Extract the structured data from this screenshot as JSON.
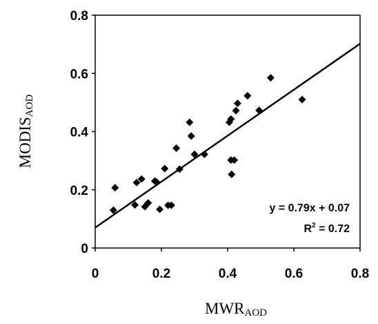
{
  "chart_data": {
    "type": "scatter",
    "title": "",
    "xlabel": {
      "main": "MWR",
      "sub": "AOD"
    },
    "ylabel": {
      "main": "MODIS",
      "sub": "AOD"
    },
    "xlim": [
      0,
      0.8
    ],
    "ylim": [
      0,
      0.8
    ],
    "xticks": [
      "0",
      "0.2",
      "0.4",
      "0.6",
      "0.8"
    ],
    "yticks": [
      "0",
      "0.2",
      "0.4",
      "0.6",
      "0.8"
    ],
    "grid": false,
    "points": [
      {
        "x": 0.055,
        "y": 0.13
      },
      {
        "x": 0.06,
        "y": 0.207
      },
      {
        "x": 0.12,
        "y": 0.148
      },
      {
        "x": 0.125,
        "y": 0.225
      },
      {
        "x": 0.14,
        "y": 0.237
      },
      {
        "x": 0.15,
        "y": 0.142
      },
      {
        "x": 0.16,
        "y": 0.155
      },
      {
        "x": 0.18,
        "y": 0.23
      },
      {
        "x": 0.185,
        "y": 0.227
      },
      {
        "x": 0.195,
        "y": 0.133
      },
      {
        "x": 0.21,
        "y": 0.273
      },
      {
        "x": 0.22,
        "y": 0.147
      },
      {
        "x": 0.23,
        "y": 0.147
      },
      {
        "x": 0.245,
        "y": 0.343
      },
      {
        "x": 0.255,
        "y": 0.271
      },
      {
        "x": 0.285,
        "y": 0.432
      },
      {
        "x": 0.29,
        "y": 0.385
      },
      {
        "x": 0.3,
        "y": 0.322
      },
      {
        "x": 0.33,
        "y": 0.322
      },
      {
        "x": 0.405,
        "y": 0.432
      },
      {
        "x": 0.41,
        "y": 0.443
      },
      {
        "x": 0.41,
        "y": 0.302
      },
      {
        "x": 0.412,
        "y": 0.253
      },
      {
        "x": 0.42,
        "y": 0.302
      },
      {
        "x": 0.425,
        "y": 0.472
      },
      {
        "x": 0.43,
        "y": 0.497
      },
      {
        "x": 0.46,
        "y": 0.523
      },
      {
        "x": 0.495,
        "y": 0.473
      },
      {
        "x": 0.53,
        "y": 0.585
      },
      {
        "x": 0.625,
        "y": 0.51
      }
    ],
    "trendline": {
      "slope": 0.79,
      "intercept": 0.07,
      "x_range": [
        0,
        0.8
      ]
    },
    "annotation": {
      "equation": "y = 0.79x + 0.07",
      "r2_prefix": "R",
      "r2_exp": "2",
      "r2_suffix": " = 0.72"
    }
  }
}
